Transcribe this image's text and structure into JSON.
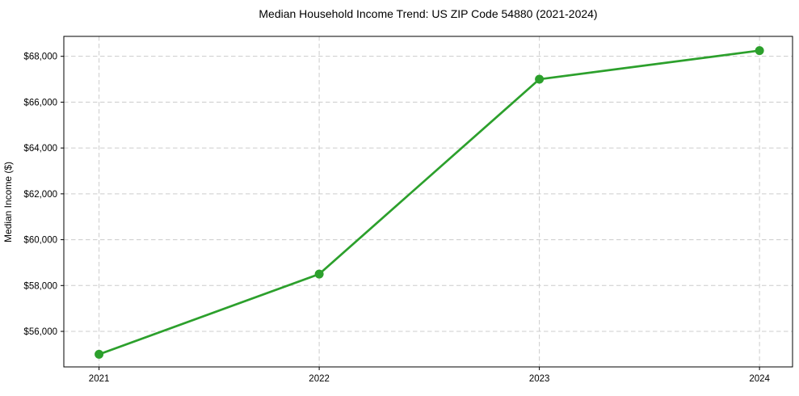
{
  "chart_data": {
    "type": "line",
    "title": "Median Household Income Trend: US ZIP Code 54880 (2021-2024)",
    "xlabel": "",
    "ylabel": "Median Income ($)",
    "categories": [
      "2021",
      "2022",
      "2023",
      "2024"
    ],
    "x": [
      2021,
      2022,
      2023,
      2024
    ],
    "series": [
      {
        "name": "Median Household Income",
        "values": [
          55000,
          58500,
          67000,
          68250
        ]
      }
    ],
    "y_ticks": [
      56000,
      58000,
      60000,
      62000,
      64000,
      66000,
      68000
    ],
    "y_tick_labels": [
      "$56,000",
      "$58,000",
      "$60,000",
      "$62,000",
      "$64,000",
      "$66,000",
      "$68,000"
    ],
    "xlim": [
      2020.84,
      2024.15
    ],
    "ylim": [
      54450,
      68870
    ],
    "grid": true,
    "grid_style": "dashed",
    "legend": "none",
    "line_color": "#2ca02c",
    "marker": "circle",
    "background_color": "#ffffff"
  }
}
